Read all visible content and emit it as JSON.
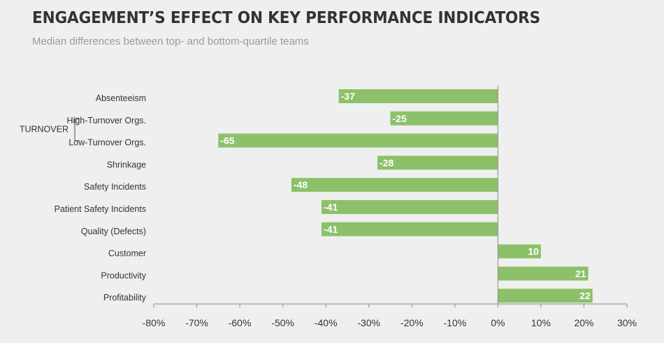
{
  "header": {
    "title": "ENGAGEMENT’S EFFECT ON KEY PERFORMANCE INDICATORS",
    "subtitle": "Median differences between top- and bottom-quartile teams"
  },
  "colors": {
    "bar": "#8cc16a",
    "axis": "#8a8a8a",
    "label": "#333333",
    "barLabel": "#ffffff"
  },
  "chart_data": {
    "type": "bar",
    "orientation": "horizontal",
    "title": "ENGAGEMENT’S EFFECT ON KEY PERFORMANCE INDICATORS",
    "subtitle": "Median differences between top- and bottom-quartile teams",
    "categories": [
      "Absenteeism",
      "High-Turnover Orgs.",
      "Low-Turnover Orgs.",
      "Shrinkage",
      "Safety Incidents",
      "Patient Safety Incidents",
      "Quality (Defects)",
      "Customer",
      "Productivity",
      "Profitability"
    ],
    "values": [
      -37,
      -25,
      -65,
      -28,
      -48,
      -41,
      -41,
      10,
      21,
      22
    ],
    "group_label": {
      "text": "TURNOVER",
      "members": [
        "High-Turnover Orgs.",
        "Low-Turnover Orgs."
      ]
    },
    "xlim": [
      -80,
      30
    ],
    "x_ticks": [
      -80,
      -70,
      -60,
      -50,
      -40,
      -30,
      -20,
      -10,
      0,
      10,
      20,
      30
    ],
    "x_tick_labels": [
      "-80%",
      "-70%",
      "-60%",
      "-50%",
      "-40%",
      "-30%",
      "-20%",
      "-10%",
      "0%",
      "10%",
      "20%",
      "30%"
    ],
    "grid": false,
    "legend": "none",
    "data_labels": true
  }
}
